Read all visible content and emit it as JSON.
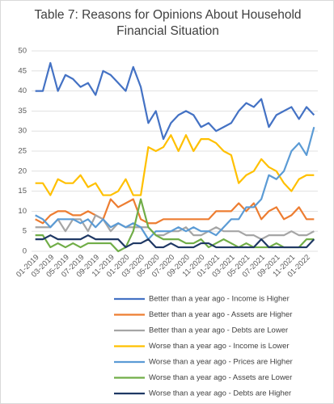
{
  "chart_data": {
    "type": "line",
    "title": "Table 7: Reasons for Opinions About Household Financial Situation",
    "categories": [
      "01-2019",
      null,
      "03-2019",
      null,
      "05-2019",
      null,
      "07-2019",
      null,
      "09-2019",
      null,
      "11-2019",
      null,
      "01-2020",
      null,
      "03-2020",
      null,
      "05-2020",
      null,
      "07-2020",
      null,
      "09-2020",
      null,
      "11-2020",
      null,
      "01-2021",
      null,
      "03-2021",
      null,
      "05-2021",
      null,
      "07-2021",
      null,
      "09-2021",
      null,
      "11-2021",
      null,
      "01-2022",
      null
    ],
    "series": [
      {
        "name": "Better than a year ago - Income is Higher",
        "color": "#4472c4",
        "values": [
          40,
          40,
          47,
          40,
          44,
          43,
          41,
          42,
          39,
          45,
          44,
          42,
          40,
          46,
          41,
          32,
          35,
          28,
          32,
          34,
          35,
          34,
          31,
          32,
          30,
          31,
          32,
          35,
          37,
          36,
          38,
          31,
          34,
          35,
          36,
          33,
          36,
          34
        ]
      },
      {
        "name": "Better than a year ago - Assets are Higher",
        "color": "#ed7d31",
        "values": [
          8,
          7,
          9,
          10,
          10,
          9,
          9,
          10,
          9,
          8,
          13,
          11,
          12,
          13,
          8,
          7,
          7,
          8,
          8,
          8,
          8,
          8,
          8,
          8,
          10,
          10,
          10,
          12,
          10,
          12,
          8,
          10,
          11,
          8,
          9,
          11,
          8,
          8
        ]
      },
      {
        "name": "Better than a year ago - Debts are Lower",
        "color": "#a5a5a5",
        "values": [
          6,
          6,
          6,
          8,
          5,
          8,
          8,
          5,
          9,
          8,
          5,
          7,
          6,
          6,
          6,
          6,
          4,
          4,
          5,
          5,
          6,
          4,
          4,
          5,
          6,
          5,
          5,
          5,
          4,
          4,
          3,
          4,
          4,
          4,
          5,
          4,
          4,
          5
        ]
      },
      {
        "name": "Worse than a year ago - Income is Lower",
        "color": "#ffc000",
        "values": [
          17,
          17,
          14,
          18,
          17,
          17,
          19,
          16,
          17,
          14,
          14,
          15,
          18,
          14,
          14,
          26,
          25,
          26,
          29,
          25,
          29,
          25,
          28,
          28,
          27,
          25,
          24,
          17,
          19,
          20,
          23,
          21,
          20,
          17,
          15,
          18,
          19,
          19
        ]
      },
      {
        "name": "Worse than a year ago - Prices are Higher",
        "color": "#5b9bd5",
        "values": [
          9,
          8,
          6,
          8,
          8,
          8,
          7,
          8,
          6,
          8,
          6,
          7,
          6,
          7,
          6,
          3,
          5,
          5,
          5,
          6,
          5,
          6,
          5,
          5,
          4,
          6,
          8,
          8,
          11,
          11,
          13,
          19,
          18,
          20,
          25,
          27,
          24,
          31
        ]
      },
      {
        "name": "Worse than a year ago - Assets are Lower",
        "color": "#70ad47",
        "values": [
          4,
          4,
          1,
          2,
          1,
          2,
          1,
          2,
          2,
          2,
          2,
          0,
          1,
          5,
          13,
          6,
          4,
          3,
          3,
          3,
          2,
          2,
          3,
          1,
          2,
          3,
          2,
          1,
          2,
          1,
          1,
          1,
          2,
          1,
          1,
          1,
          3,
          3
        ]
      },
      {
        "name": "Worse than a year ago - Debts are Higher",
        "color": "#1f3864",
        "values": [
          3,
          3,
          4,
          3,
          3,
          3,
          3,
          4,
          3,
          3,
          3,
          3,
          1,
          2,
          2,
          3,
          1,
          1,
          2,
          1,
          1,
          1,
          2,
          2,
          1,
          1,
          1,
          1,
          1,
          1,
          3,
          1,
          1,
          1,
          1,
          1,
          1,
          3
        ]
      }
    ],
    "ylim": [
      0,
      50
    ],
    "yticks": [
      0,
      5,
      10,
      15,
      20,
      25,
      30,
      35,
      40,
      45,
      50
    ],
    "grid": true
  }
}
